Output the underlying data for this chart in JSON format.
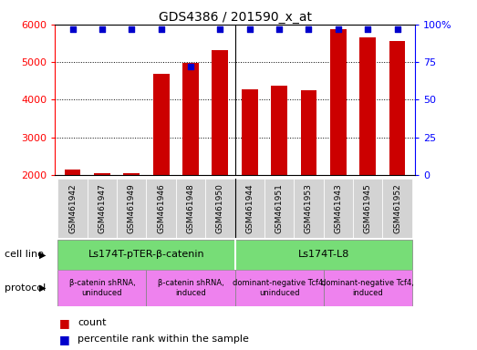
{
  "title": "GDS4386 / 201590_x_at",
  "samples": [
    "GSM461942",
    "GSM461947",
    "GSM461949",
    "GSM461946",
    "GSM461948",
    "GSM461950",
    "GSM461944",
    "GSM461951",
    "GSM461953",
    "GSM461943",
    "GSM461945",
    "GSM461952"
  ],
  "counts": [
    2150,
    2050,
    2050,
    4700,
    4980,
    5330,
    4270,
    4380,
    4250,
    5870,
    5650,
    5570
  ],
  "percentiles": [
    97,
    97,
    97,
    97,
    72,
    97,
    97,
    97,
    97,
    97,
    97,
    97
  ],
  "ylim": [
    2000,
    6000
  ],
  "yticks": [
    2000,
    3000,
    4000,
    5000,
    6000
  ],
  "right_yticks": [
    0,
    25,
    50,
    75,
    100
  ],
  "right_ylim": [
    0,
    100
  ],
  "bar_color": "#cc0000",
  "dot_color": "#0000cc",
  "cell_line_groups": [
    {
      "label": "Ls174T-pTER-β-catenin",
      "start": 0,
      "end": 5,
      "color": "#77dd77"
    },
    {
      "label": "Ls174T-L8",
      "start": 6,
      "end": 11,
      "color": "#77dd77"
    }
  ],
  "protocol_groups": [
    {
      "label": "β-catenin shRNA,\nuninduced",
      "start": 0,
      "end": 2,
      "color": "#ee82ee"
    },
    {
      "label": "β-catenin shRNA,\ninduced",
      "start": 3,
      "end": 5,
      "color": "#ee82ee"
    },
    {
      "label": "dominant-negative Tcf4,\nuninduced",
      "start": 6,
      "end": 8,
      "color": "#ee82ee"
    },
    {
      "label": "dominant-negative Tcf4,\ninduced",
      "start": 9,
      "end": 11,
      "color": "#ee82ee"
    }
  ],
  "legend_count_label": "count",
  "legend_percentile_label": "percentile rank within the sample",
  "cell_line_label": "cell line",
  "protocol_label": "protocol",
  "bar_width": 0.55
}
